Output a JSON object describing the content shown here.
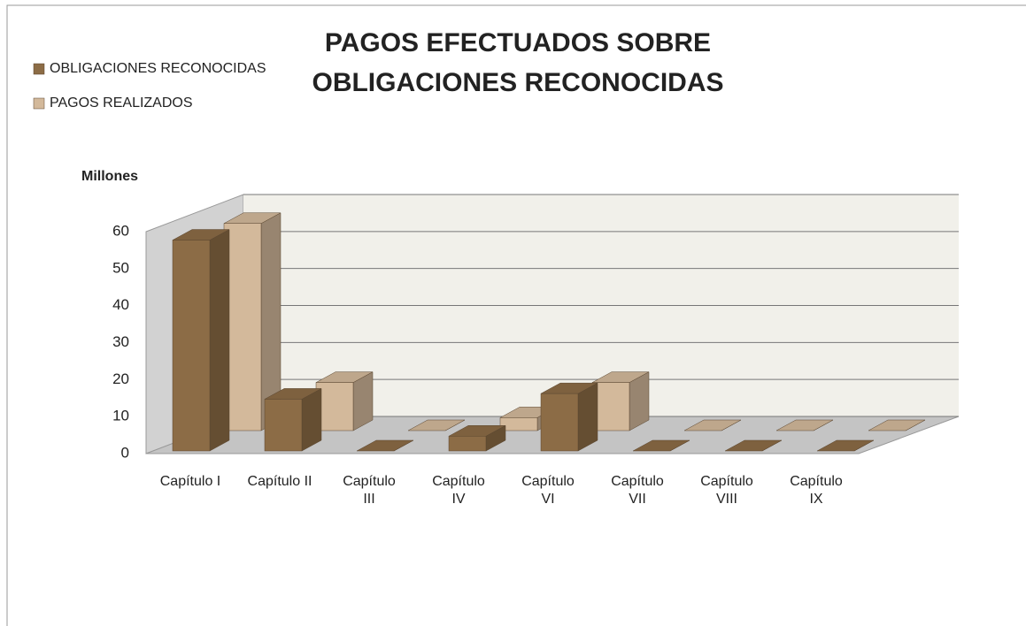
{
  "chart_data": {
    "type": "bar3d",
    "title": [
      "PAGOS EFECTUADOS SOBRE",
      "OBLIGACIONES RECONOCIDAS"
    ],
    "y_label": "Millones",
    "categories": [
      "Capítulo I",
      "Capítulo II",
      "Capítulo III",
      "Capítulo IV",
      "Capítulo VI",
      "Capítulo VII",
      "Capítulo VIII",
      "Capítulo IX"
    ],
    "series": [
      {
        "name": "OBLIGACIONES RECONOCIDAS",
        "color": "#8c6c46",
        "values": [
          57,
          14,
          0,
          4,
          15.5,
          0,
          0,
          0
        ]
      },
      {
        "name": "PAGOS REALIZADOS",
        "color": "#d3b99b",
        "values": [
          56,
          13,
          0,
          3.5,
          13,
          0,
          0,
          0
        ]
      }
    ],
    "ylim": [
      0,
      60
    ],
    "yticks": [
      0,
      10,
      20,
      30,
      40,
      50,
      60
    ],
    "grid": true,
    "legend": "top-left"
  }
}
